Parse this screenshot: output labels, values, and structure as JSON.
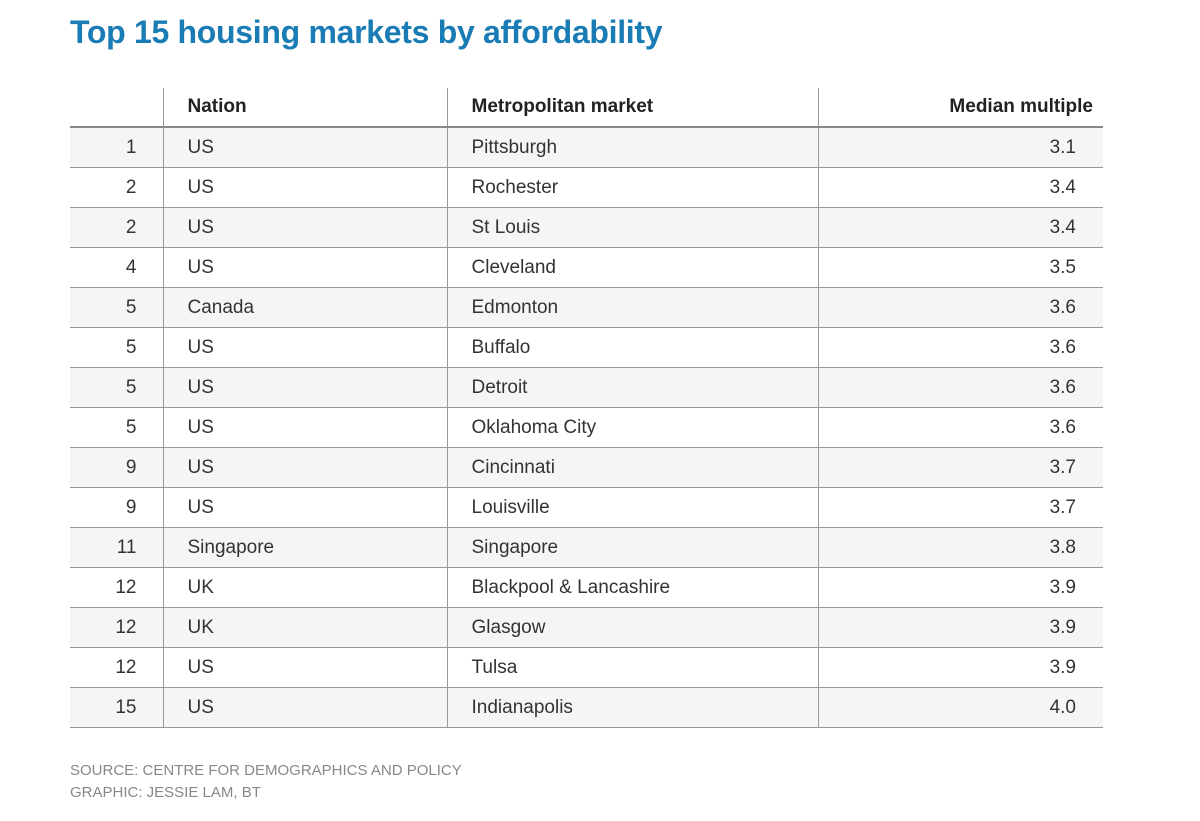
{
  "title": "Top 15 housing markets by affordability",
  "chart_data": {
    "type": "table",
    "title": "Top 15 housing markets by affordability",
    "columns": [
      "",
      "Nation",
      "Metropolitan market",
      "Median multiple"
    ],
    "rows": [
      {
        "rank": "1",
        "nation": "US",
        "market": "Pittsburgh",
        "multiple": "3.1"
      },
      {
        "rank": "2",
        "nation": "US",
        "market": "Rochester",
        "multiple": "3.4"
      },
      {
        "rank": "2",
        "nation": "US",
        "market": "St Louis",
        "multiple": "3.4"
      },
      {
        "rank": "4",
        "nation": "US",
        "market": "Cleveland",
        "multiple": "3.5"
      },
      {
        "rank": "5",
        "nation": "Canada",
        "market": "Edmonton",
        "multiple": "3.6"
      },
      {
        "rank": "5",
        "nation": "US",
        "market": "Buffalo",
        "multiple": "3.6"
      },
      {
        "rank": "5",
        "nation": "US",
        "market": "Detroit",
        "multiple": "3.6"
      },
      {
        "rank": "5",
        "nation": "US",
        "market": "Oklahoma City",
        "multiple": "3.6"
      },
      {
        "rank": "9",
        "nation": "US",
        "market": "Cincinnati",
        "multiple": "3.7"
      },
      {
        "rank": "9",
        "nation": "US",
        "market": "Louisville",
        "multiple": "3.7"
      },
      {
        "rank": "11",
        "nation": "Singapore",
        "market": "Singapore",
        "multiple": "3.8"
      },
      {
        "rank": "12",
        "nation": "UK",
        "market": "Blackpool & Lancashire",
        "multiple": "3.9"
      },
      {
        "rank": "12",
        "nation": "UK",
        "market": "Glasgow",
        "multiple": "3.9"
      },
      {
        "rank": "12",
        "nation": "US",
        "market": "Tulsa",
        "multiple": "3.9"
      },
      {
        "rank": "15",
        "nation": "US",
        "market": "Indianapolis",
        "multiple": "4.0"
      }
    ]
  },
  "footer": {
    "source": "SOURCE: CENTRE FOR DEMOGRAPHICS AND POLICY",
    "graphic": "GRAPHIC: JESSIE LAM, BT"
  },
  "colors": {
    "title": "#1a7cb5",
    "band": "#f5f5f5",
    "footer_text": "#888888"
  }
}
